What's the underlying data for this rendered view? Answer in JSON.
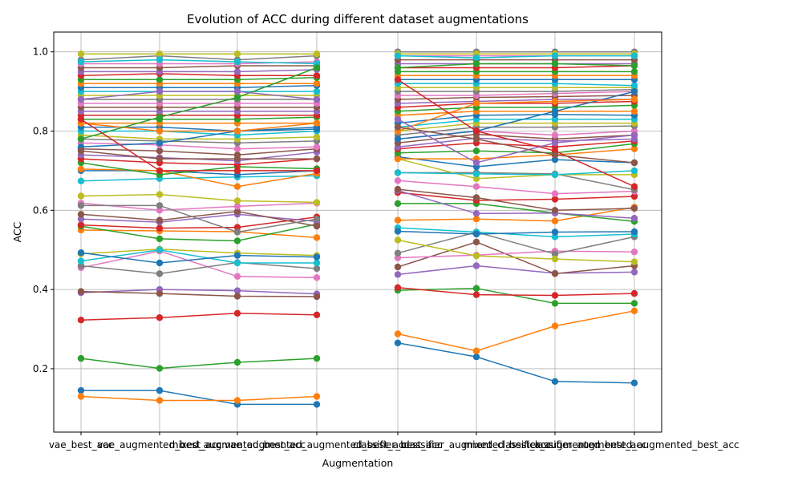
{
  "chart_data": {
    "type": "line",
    "title": "Evolution of ACC during different dataset augmentations",
    "xlabel": "Augmentation",
    "ylabel": "ACC",
    "ylim": [
      0.04,
      1.05
    ],
    "yticks": [
      "0.2",
      "0.4",
      "0.6",
      "0.8",
      "1.0"
    ],
    "ytick_values": [
      0.2,
      0.4,
      0.6,
      0.8,
      1.0
    ],
    "grid": true,
    "legend": "none",
    "categories": [
      "vae_best_acc",
      "vae_augmented_best_acc",
      "mixed_augmented_best_acc",
      "vae_augmented_augmented_best_acc",
      "classifier_best_acc",
      "classifier_augmented_best_acc",
      "mixed_classifier_augmented_best_acc",
      "classifier_augmented_augmented_best_acc"
    ],
    "groups": [
      [
        0,
        1,
        2,
        3
      ],
      [
        4,
        5,
        6,
        7
      ]
    ],
    "colors": [
      "#1f77b4",
      "#ff7f0e",
      "#2ca02c",
      "#d62728",
      "#9467bd",
      "#8c564b",
      "#e377c2",
      "#7f7f7f",
      "#bcbd22",
      "#17becf"
    ],
    "series": [
      {
        "values": [
          0.145,
          0.145,
          0.11,
          0.11,
          0.265,
          0.23,
          0.168,
          0.164
        ]
      },
      {
        "values": [
          0.13,
          0.12,
          0.12,
          0.13,
          0.288,
          0.245,
          0.308,
          0.346
        ]
      },
      {
        "values": [
          0.226,
          0.201,
          0.216,
          0.226,
          0.398,
          0.403,
          0.365,
          0.365
        ]
      },
      {
        "values": [
          0.323,
          0.329,
          0.34,
          0.336,
          0.405,
          0.387,
          0.385,
          0.39
        ]
      },
      {
        "values": [
          0.392,
          0.4,
          0.397,
          0.389,
          0.438,
          0.46,
          0.441,
          0.444
        ]
      },
      {
        "values": [
          0.395,
          0.39,
          0.383,
          0.382,
          0.457,
          0.52,
          0.44,
          0.46
        ]
      },
      {
        "values": [
          0.455,
          0.497,
          0.433,
          0.43,
          0.48,
          0.487,
          0.497,
          0.495
        ]
      },
      {
        "values": [
          0.46,
          0.44,
          0.468,
          0.453,
          0.492,
          0.545,
          0.49,
          0.533
        ]
      },
      {
        "values": [
          0.49,
          0.502,
          0.492,
          0.486,
          0.525,
          0.485,
          0.477,
          0.47
        ]
      },
      {
        "values": [
          0.472,
          0.5,
          0.467,
          0.467,
          0.556,
          0.545,
          0.533,
          0.54
        ]
      },
      {
        "values": [
          0.493,
          0.467,
          0.486,
          0.482,
          0.547,
          0.54,
          0.545,
          0.546
        ]
      },
      {
        "values": [
          0.55,
          0.548,
          0.546,
          0.531,
          0.575,
          0.578,
          0.573,
          0.608
        ]
      },
      {
        "values": [
          0.56,
          0.528,
          0.523,
          0.565,
          0.617,
          0.617,
          0.593,
          0.572
        ]
      },
      {
        "values": [
          0.563,
          0.555,
          0.557,
          0.583,
          0.645,
          0.625,
          0.628,
          0.635
        ]
      },
      {
        "values": [
          0.578,
          0.57,
          0.59,
          0.572,
          0.65,
          0.592,
          0.593,
          0.58
        ]
      },
      {
        "values": [
          0.59,
          0.575,
          0.597,
          0.56,
          0.653,
          0.632,
          0.6,
          0.605
        ]
      },
      {
        "values": [
          0.618,
          0.6,
          0.61,
          0.618,
          0.675,
          0.66,
          0.642,
          0.648
        ]
      },
      {
        "values": [
          0.612,
          0.612,
          0.545,
          0.578,
          0.695,
          0.695,
          0.692,
          0.652
        ]
      },
      {
        "values": [
          0.636,
          0.64,
          0.624,
          0.62,
          0.73,
          0.68,
          0.69,
          0.69
        ]
      },
      {
        "values": [
          0.674,
          0.68,
          0.684,
          0.687,
          0.695,
          0.692,
          0.69,
          0.7
        ]
      },
      {
        "values": [
          0.7,
          0.7,
          0.69,
          0.7,
          0.735,
          0.71,
          0.728,
          0.72
        ]
      },
      {
        "values": [
          0.704,
          0.7,
          0.66,
          0.693,
          0.73,
          0.73,
          0.74,
          0.755
        ]
      },
      {
        "values": [
          0.72,
          0.69,
          0.71,
          0.705,
          0.745,
          0.75,
          0.745,
          0.768
        ]
      },
      {
        "values": [
          0.73,
          0.72,
          0.715,
          0.73,
          0.755,
          0.77,
          0.76,
          0.775
        ]
      },
      {
        "values": [
          0.74,
          0.733,
          0.725,
          0.747,
          0.76,
          0.782,
          0.775,
          0.78
        ]
      },
      {
        "values": [
          0.755,
          0.75,
          0.74,
          0.755,
          0.77,
          0.792,
          0.78,
          0.79
        ]
      },
      {
        "values": [
          0.77,
          0.765,
          0.755,
          0.76,
          0.78,
          0.8,
          0.79,
          0.8
        ]
      },
      {
        "values": [
          0.78,
          0.775,
          0.77,
          0.775,
          0.79,
          0.81,
          0.81,
          0.813
        ]
      },
      {
        "values": [
          0.79,
          0.78,
          0.78,
          0.785,
          0.8,
          0.82,
          0.82,
          0.82
        ]
      },
      {
        "values": [
          0.8,
          0.8,
          0.79,
          0.8,
          0.81,
          0.83,
          0.83,
          0.83
        ]
      },
      {
        "values": [
          0.81,
          0.81,
          0.8,
          0.81,
          0.82,
          0.84,
          0.842,
          0.84
        ]
      },
      {
        "values": [
          0.82,
          0.82,
          0.82,
          0.82,
          0.84,
          0.85,
          0.85,
          0.85
        ]
      },
      {
        "values": [
          0.83,
          0.83,
          0.83,
          0.835,
          0.85,
          0.86,
          0.86,
          0.865
        ]
      },
      {
        "values": [
          0.84,
          0.84,
          0.84,
          0.84,
          0.86,
          0.87,
          0.87,
          0.875
        ]
      },
      {
        "values": [
          0.85,
          0.85,
          0.85,
          0.85,
          0.87,
          0.875,
          0.88,
          0.88
        ]
      },
      {
        "values": [
          0.86,
          0.86,
          0.86,
          0.86,
          0.88,
          0.885,
          0.887,
          0.89
        ]
      },
      {
        "values": [
          0.87,
          0.87,
          0.87,
          0.87,
          0.89,
          0.89,
          0.895,
          0.9
        ]
      },
      {
        "values": [
          0.88,
          0.88,
          0.88,
          0.88,
          0.9,
          0.9,
          0.9,
          0.905
        ]
      },
      {
        "values": [
          0.89,
          0.89,
          0.89,
          0.89,
          0.91,
          0.91,
          0.91,
          0.91
        ]
      },
      {
        "values": [
          0.9,
          0.9,
          0.9,
          0.9,
          0.92,
          0.92,
          0.92,
          0.915
        ]
      },
      {
        "values": [
          0.91,
          0.91,
          0.91,
          0.915,
          0.93,
          0.93,
          0.93,
          0.93
        ]
      },
      {
        "values": [
          0.92,
          0.92,
          0.92,
          0.92,
          0.94,
          0.94,
          0.94,
          0.94
        ]
      },
      {
        "values": [
          0.93,
          0.93,
          0.93,
          0.935,
          0.95,
          0.95,
          0.95,
          0.95
        ]
      },
      {
        "values": [
          0.94,
          0.945,
          0.94,
          0.94,
          0.96,
          0.96,
          0.96,
          0.965
        ]
      },
      {
        "values": [
          0.95,
          0.95,
          0.95,
          0.955,
          0.97,
          0.97,
          0.97,
          0.97
        ]
      },
      {
        "values": [
          0.96,
          0.96,
          0.965,
          0.965,
          0.98,
          0.98,
          0.98,
          0.98
        ]
      },
      {
        "values": [
          0.97,
          0.97,
          0.97,
          0.975,
          0.99,
          0.99,
          0.99,
          0.99
        ]
      },
      {
        "values": [
          0.98,
          0.99,
          0.98,
          0.99,
          1.0,
          1.0,
          1.0,
          1.0
        ]
      },
      {
        "values": [
          0.995,
          0.995,
          0.995,
          0.995,
          0.995,
          0.995,
          0.995,
          0.995
        ]
      },
      {
        "values": [
          0.975,
          0.98,
          0.975,
          0.97,
          0.99,
          0.985,
          0.99,
          0.99
        ]
      },
      {
        "values": [
          0.76,
          0.77,
          0.8,
          0.805,
          0.78,
          0.8,
          0.85,
          0.9
        ]
      },
      {
        "values": [
          0.82,
          0.8,
          0.8,
          0.82,
          0.8,
          0.87,
          0.875,
          0.88
        ]
      },
      {
        "values": [
          0.78,
          0.835,
          0.885,
          0.96,
          0.96,
          0.97,
          0.97,
          0.965
        ]
      },
      {
        "values": [
          0.83,
          0.7,
          0.7,
          0.7,
          0.93,
          0.8,
          0.75,
          0.66
        ]
      },
      {
        "values": [
          0.88,
          0.9,
          0.9,
          0.88,
          0.83,
          0.72,
          0.77,
          0.79
        ]
      },
      {
        "values": [
          0.75,
          0.73,
          0.73,
          0.73,
          0.81,
          0.78,
          0.74,
          0.72
        ]
      }
    ]
  }
}
